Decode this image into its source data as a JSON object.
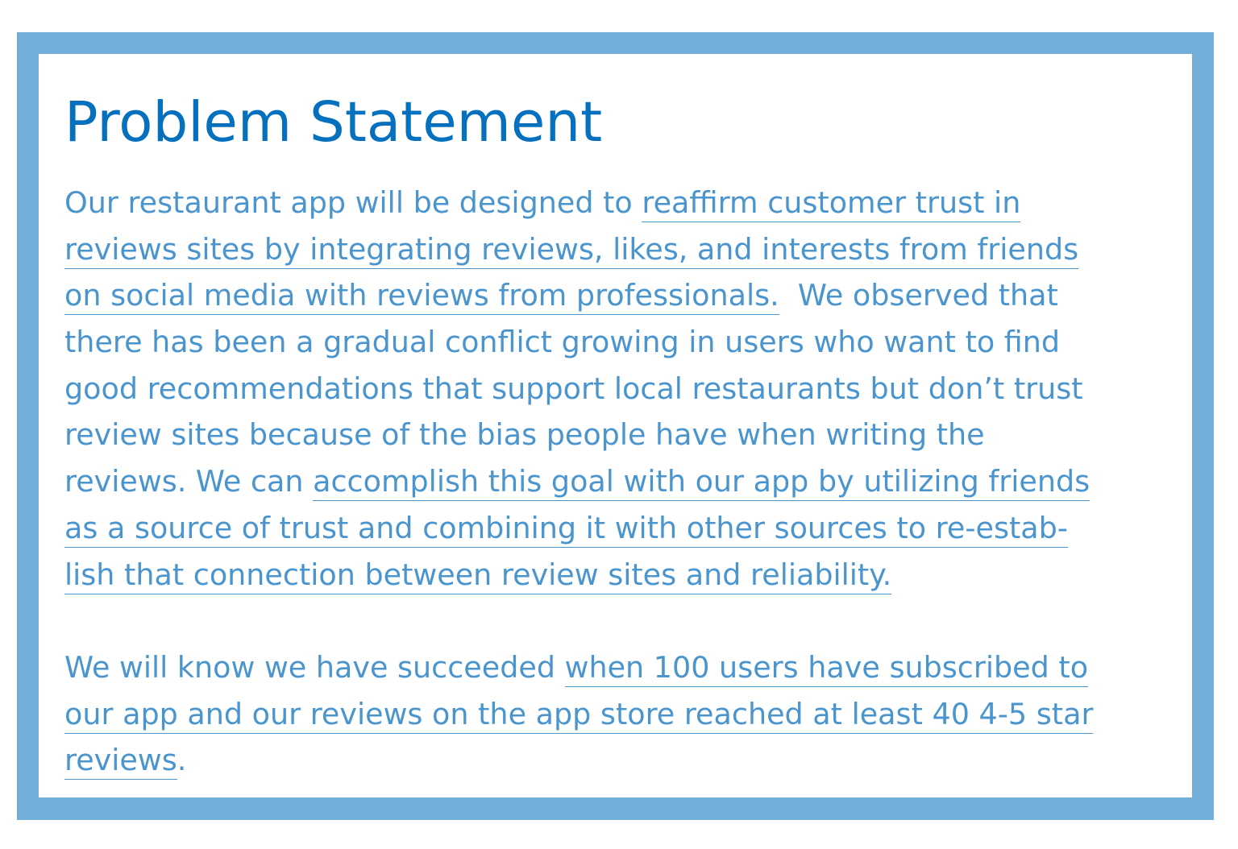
{
  "title": "Problem Statement",
  "paragraph1": {
    "l1_plain": "Our restaurant app will be designed to ",
    "l1_u": "reaffirm customer trust in",
    "l2_u": "reviews sites by integrating reviews, likes, and interests from friends",
    "l3_u": "on social media with reviews from professionals.",
    "l3_plain": "  We observed that",
    "l4": "there has been a gradual conflict growing in users who want to find",
    "l5": "good recommendations that support local restaurants but don’t trust",
    "l6": "review sites because of the bias people have when writing the",
    "l7_plain": "reviews. We can ",
    "l7_u": "accomplish this goal with our app by utilizing friends",
    "l8_u": "as a source of trust and combining it with other sources to re-estab-",
    "l9_u": "lish that connection between review sites and reliability."
  },
  "paragraph2": {
    "l1_plain": "We will know we have succeeded ",
    "l1_u": "when 100 users have subscribed to",
    "l2_u": "our app and our reviews on the app store reached at least 40 4-5 star",
    "l3_u": "reviews",
    "l3_plain": "."
  },
  "colors": {
    "border": "#73aed9",
    "title": "#0570bd",
    "text": "#4b95cf"
  }
}
